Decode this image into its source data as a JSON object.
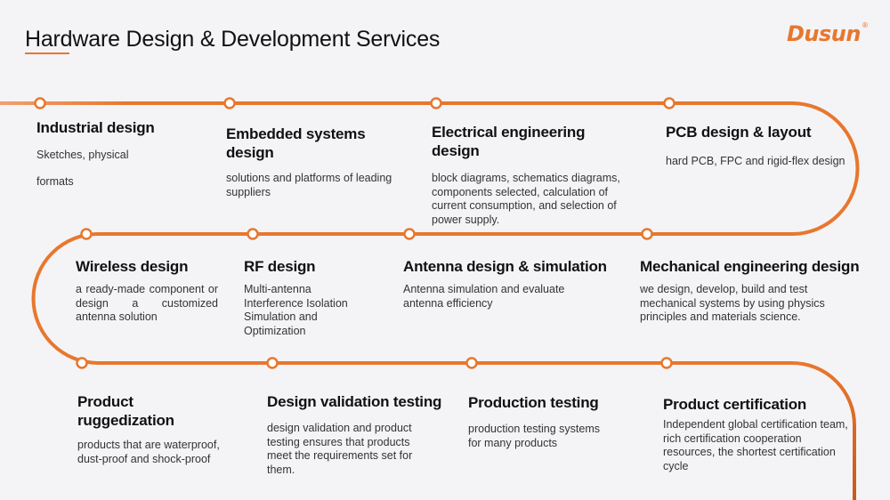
{
  "header": {
    "title": "Hardware Design & Development Services",
    "logo_text": "Dusun",
    "logo_mark": "®"
  },
  "colors": {
    "accent": "#e8772e",
    "background": "#f4f4f6",
    "text": "#1a1a1a"
  },
  "rows": [
    {
      "items": [
        {
          "title": "Industrial design",
          "lines": [
            "Sketches, physical",
            "formats"
          ]
        },
        {
          "title": "Embedded systems design",
          "desc": "solutions and platforms of leading suppliers"
        },
        {
          "title": "Electrical engineering design",
          "desc": "block diagrams, schematics diagrams, components selected, calculation of current consumption, and selection of power supply."
        },
        {
          "title": "PCB design & layout",
          "desc": "hard PCB, FPC and rigid-flex design"
        }
      ]
    },
    {
      "items": [
        {
          "title": "Wireless design",
          "desc": "a ready-made component or design a customized antenna solution"
        },
        {
          "title": "RF design",
          "desc": "Multi-antenna Interference Isolation Simulation and Optimization"
        },
        {
          "title": "Antenna design & simulation",
          "desc": "Antenna simulation and evaluate antenna efficiency"
        },
        {
          "title": "Mechanical engineering design",
          "desc": "we design, develop, build and test mechanical systems by using physics principles and materials science."
        }
      ]
    },
    {
      "items": [
        {
          "title": "Product ruggedization",
          "desc": "products that are waterproof, dust-proof and shock-proof"
        },
        {
          "title": "Design validation testing",
          "desc": "design validation and product testing ensures that products meet the requirements set for them."
        },
        {
          "title": "Production testing",
          "desc": "production testing systems for many products"
        },
        {
          "title": "Product certification",
          "desc": "Independent global certification team, rich certification cooperation resources, the shortest certification cycle"
        }
      ]
    }
  ]
}
